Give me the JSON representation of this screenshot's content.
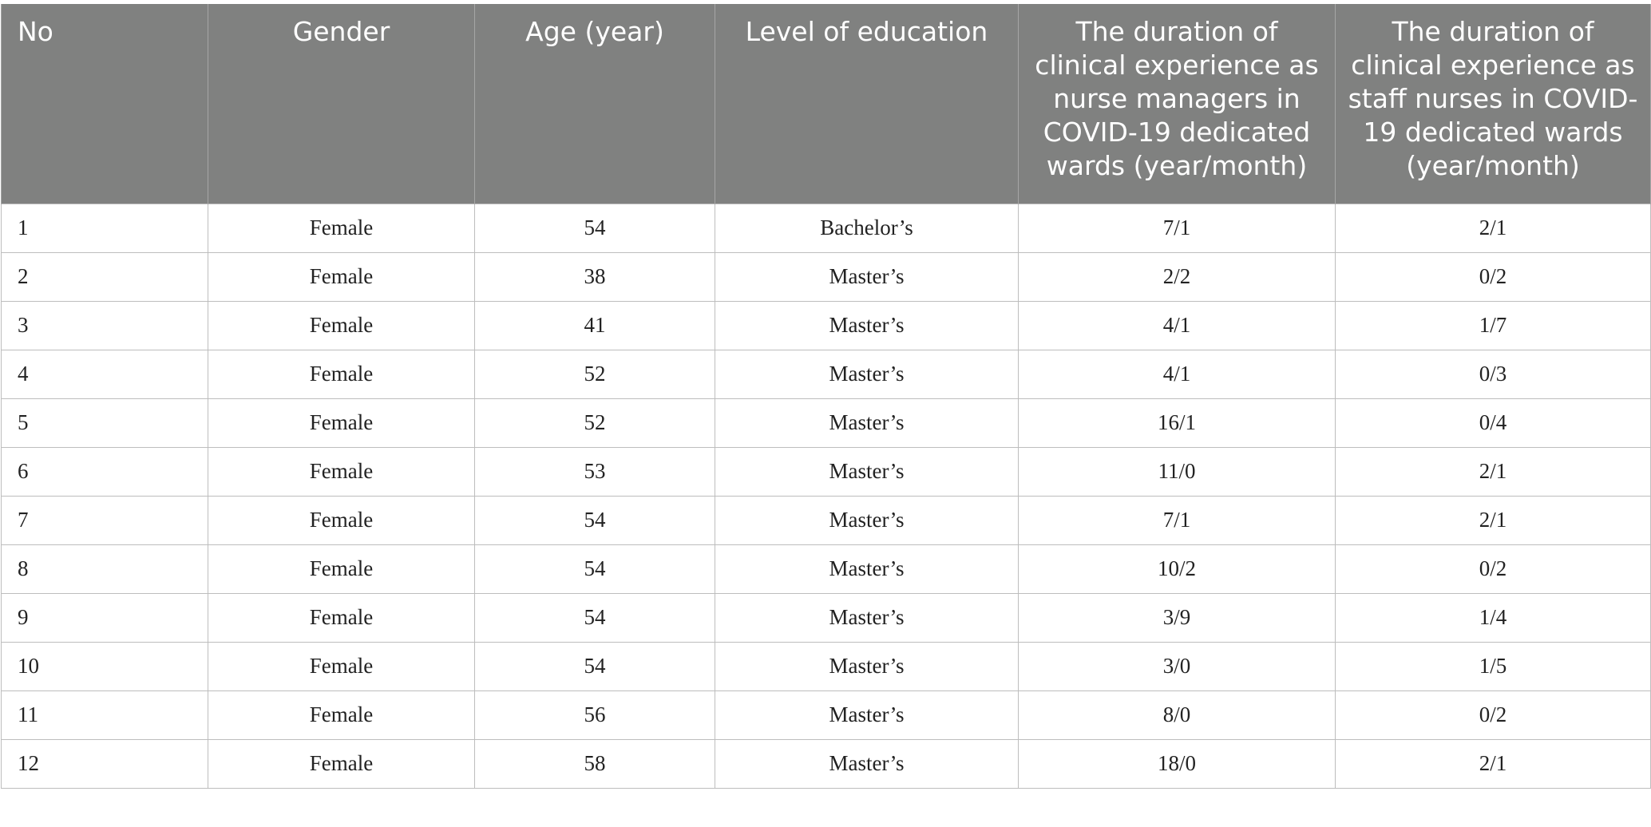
{
  "table": {
    "headers": [
      "No",
      "Gender",
      "Age (year)",
      "Level of education",
      "The duration of clinical experience as nurse managers in COVID-19 dedicated wards (year/month)",
      "The duration of clinical experience as staff nurses in COVID-19 dedicated wards (year/month)"
    ],
    "rows": [
      [
        "1",
        "Female",
        "54",
        "Bachelor’s",
        "7/1",
        "2/1"
      ],
      [
        "2",
        "Female",
        "38",
        "Master’s",
        "2/2",
        "0/2"
      ],
      [
        "3",
        "Female",
        "41",
        "Master’s",
        "4/1",
        "1/7"
      ],
      [
        "4",
        "Female",
        "52",
        "Master’s",
        "4/1",
        "0/3"
      ],
      [
        "5",
        "Female",
        "52",
        "Master’s",
        "16/1",
        "0/4"
      ],
      [
        "6",
        "Female",
        "53",
        "Master’s",
        "11/0",
        "2/1"
      ],
      [
        "7",
        "Female",
        "54",
        "Master’s",
        "7/1",
        "2/1"
      ],
      [
        "8",
        "Female",
        "54",
        "Master’s",
        "10/2",
        "0/2"
      ],
      [
        "9",
        "Female",
        "54",
        "Master’s",
        "3/9",
        "1/4"
      ],
      [
        "10",
        "Female",
        "54",
        "Master’s",
        "3/0",
        "1/5"
      ],
      [
        "11",
        "Female",
        "56",
        "Master’s",
        "8/0",
        "0/2"
      ],
      [
        "12",
        "Female",
        "58",
        "Master’s",
        "18/0",
        "2/1"
      ]
    ]
  }
}
